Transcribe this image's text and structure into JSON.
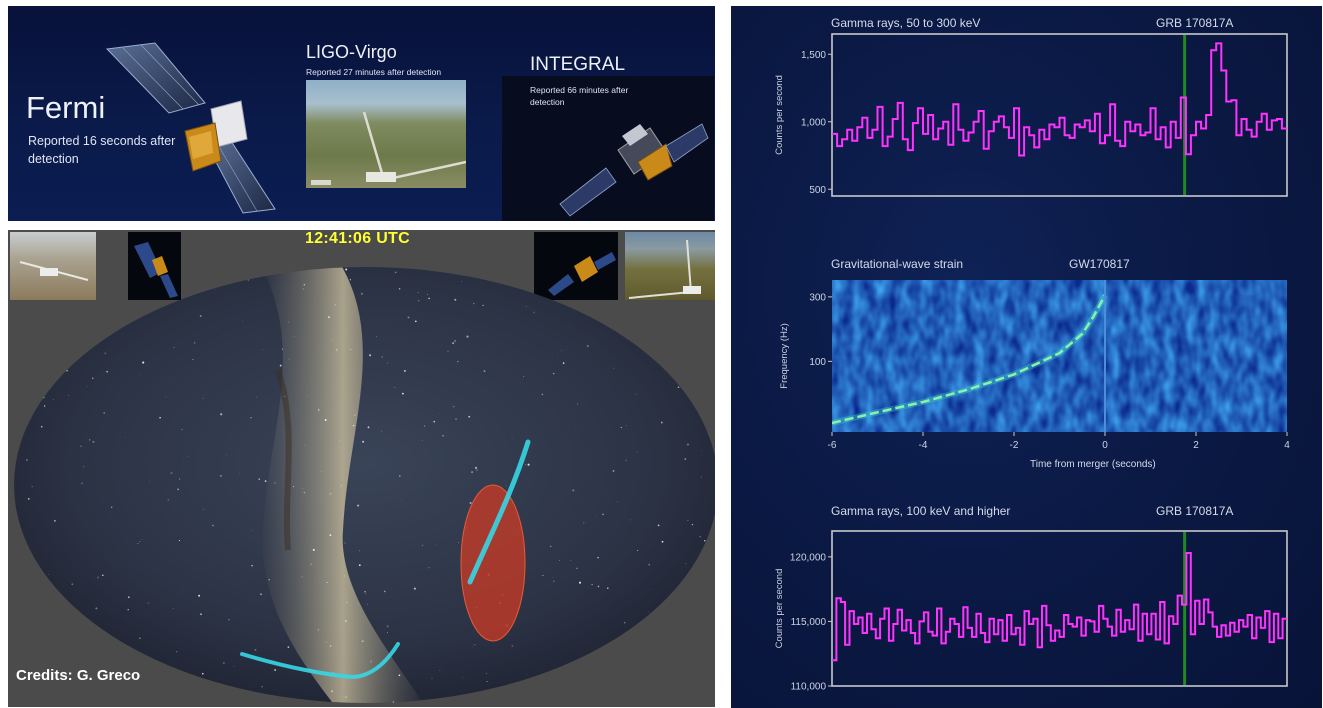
{
  "missions": {
    "fermi": {
      "name": "Fermi",
      "report": "Reported 16 seconds after detection"
    },
    "ligo_virgo": {
      "name": "LIGO-Virgo",
      "report": "Reported 27 minutes after detection"
    },
    "integral": {
      "name": "INTEGRAL",
      "report": "Reported 66 minutes after detection"
    }
  },
  "sky_map": {
    "time": "12:41:06 UTC",
    "credits": "Credits: G. Greco"
  },
  "colors": {
    "gamma_trace": "#ff33ff",
    "merger_line": "#1f8a1f",
    "skymap_ligo": "#37d6e6",
    "skymap_fermi": "#d23a22",
    "utc_text": "#ffff33"
  },
  "chart_data": [
    {
      "type": "line",
      "step": true,
      "title": "Gamma rays, 50 to 300 keV",
      "event_label": "GRB 170817A",
      "ylabel": "Counts per second",
      "ylim": [
        450,
        1650
      ],
      "yticks": [
        500,
        1000,
        1500
      ],
      "ytick_labels": [
        "500",
        "1,000",
        "1,500"
      ],
      "x_range": [
        -6,
        4
      ],
      "marker_x": 1.75,
      "series": [
        {
          "values": [
            910,
            820,
            870,
            940,
            860,
            960,
            1030,
            880,
            940,
            1110,
            820,
            890,
            1020,
            1140,
            870,
            790,
            990,
            1100,
            910,
            1050,
            870,
            950,
            1000,
            830,
            1130,
            940,
            860,
            920,
            1000,
            1080,
            800,
            930,
            1000,
            1040,
            960,
            880,
            1100,
            750,
            960,
            900,
            810,
            940,
            870,
            980,
            960,
            1030,
            900,
            880,
            980,
            960,
            1010,
            930,
            1060,
            840,
            900,
            1130,
            860,
            820,
            1000,
            930,
            980,
            900,
            920,
            1100,
            870,
            960,
            810,
            1000,
            880,
            1180,
            760,
            900,
            1000,
            950,
            1050,
            1530,
            1580,
            1380,
            1150,
            1160,
            900,
            1020,
            940,
            890,
            1000,
            1060,
            940,
            1010,
            1020,
            950
          ]
        }
      ]
    },
    {
      "type": "heatmap",
      "title": "Gravitational-wave strain",
      "event_label": "GW170817",
      "xlabel": "Time from merger (seconds)",
      "ylabel": "Frequency (Hz)",
      "xlim": [
        -6,
        4
      ],
      "xticks": [
        -6,
        -4,
        -2,
        0,
        2,
        4
      ],
      "yticks": [
        100,
        300
      ],
      "ylim": [
        30,
        400
      ],
      "chirp": {
        "t": [
          -6,
          -5,
          -4,
          -3,
          -2,
          -1,
          -0.5,
          -0.25,
          0
        ],
        "f": [
          35,
          42,
          50,
          62,
          80,
          115,
          160,
          215,
          310
        ]
      }
    },
    {
      "type": "line",
      "step": true,
      "title": "Gamma rays, 100 keV and higher",
      "event_label": "GRB 170817A",
      "ylabel": "Counts per second",
      "ylim": [
        110000,
        122000
      ],
      "yticks": [
        110000,
        115000,
        120000
      ],
      "ytick_labels": [
        "110,000",
        "115,000",
        "120,000"
      ],
      "x_range": [
        -6,
        4
      ],
      "marker_x": 1.75,
      "series": [
        {
          "values": [
            112000,
            116800,
            116500,
            113200,
            115800,
            114800,
            115300,
            114100,
            115600,
            114400,
            113700,
            115200,
            116000,
            113500,
            114800,
            115900,
            114300,
            115100,
            114100,
            113300,
            115000,
            115700,
            114200,
            113900,
            116000,
            113300,
            114200,
            115200,
            114800,
            113800,
            116100,
            114500,
            113800,
            115600,
            114100,
            113400,
            115200,
            114000,
            115100,
            113500,
            115500,
            114000,
            114500,
            113200,
            115800,
            114800,
            115200,
            113000,
            116200,
            114700,
            113500,
            114300,
            113800,
            115500,
            114800,
            114600,
            115300,
            113900,
            115100,
            115000,
            114200,
            116200,
            115200,
            114600,
            113900,
            115900,
            114200,
            115100,
            114400,
            116300,
            113500,
            115600,
            114000,
            115600,
            113600,
            116500,
            113300,
            115400,
            114800,
            117000,
            116300,
            120300,
            114000,
            116600,
            114800,
            116700,
            115700,
            114600,
            113800,
            114700,
            113900,
            114900,
            114200,
            115100,
            114600,
            115500,
            113700,
            115300,
            114500,
            115800,
            113400,
            115600,
            113700,
            115200
          ]
        }
      ]
    }
  ]
}
